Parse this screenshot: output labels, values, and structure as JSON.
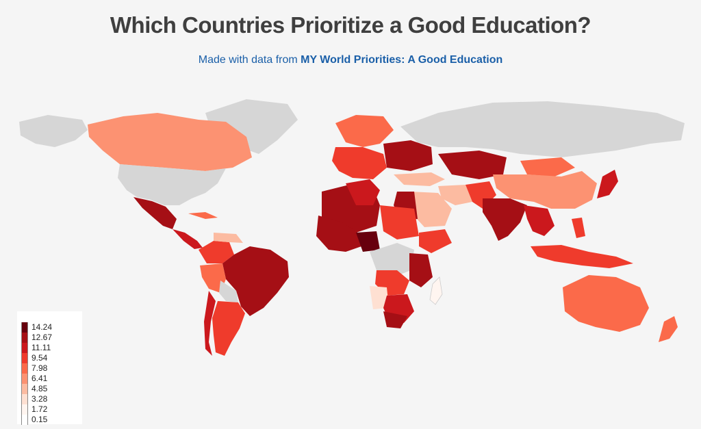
{
  "header": {
    "title": "Which Countries Prioritize a Good Education?",
    "subtitle_prefix": "Made with data from ",
    "subtitle_link": "MY World Priorities: A Good Education"
  },
  "map": {
    "ocean_color": "#f5f5f5",
    "no_data_color": "#d6d6d6",
    "shown_countries": [
      "Canada",
      "United States",
      "Mexico",
      "Brazil",
      "Argentina",
      "Peru",
      "Colombia",
      "Russia",
      "China",
      "India",
      "Australia",
      "Algeria",
      "Egypt",
      "Nigeria",
      "Democratic Republic of the Congo",
      "South Africa",
      "Madagascar",
      "Japan",
      "Indonesia",
      "New Zealand",
      "Greenland",
      "Kazakhstan",
      "Mongolia",
      "Turkey",
      "Saudi Arabia",
      "Iran",
      "Ukraine"
    ]
  },
  "legend": {
    "labels": [
      "14.24",
      "12.67",
      "11.11",
      "9.54",
      "7.98",
      "6.41",
      "4.85",
      "3.28",
      "1.72",
      "0.15"
    ],
    "colors": [
      "#67000d",
      "#a50f15",
      "#cb181d",
      "#ef3b2c",
      "#fb6a4a",
      "#fc9272",
      "#fcbba1",
      "#fee0d2",
      "#fff5f0",
      "#ffffff"
    ]
  }
}
